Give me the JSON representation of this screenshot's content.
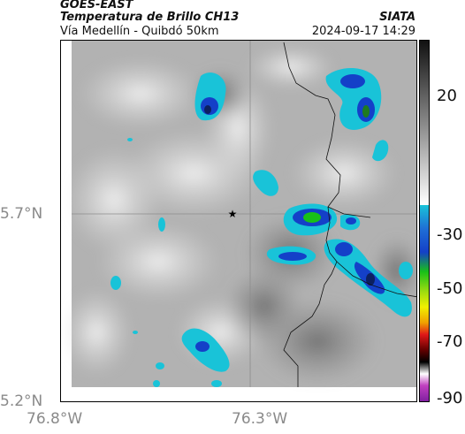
{
  "header": {
    "satellite": "GOES-EAST",
    "product": "Temperatura de Brillo CH13",
    "organization": "SIATA",
    "route": "Vía Medellín - Quibdó 50km",
    "timestamp": "2024-09-17 14:29"
  },
  "map": {
    "lat_labels": [
      "5.7°N",
      "5.2°N"
    ],
    "lon_labels": [
      "76.8°W",
      "76.3°W"
    ],
    "marker": "star-icon"
  },
  "colorbar": {
    "labels": [
      "20",
      "-30",
      "-50",
      "-70",
      "-90"
    ],
    "colors": {
      "warm_top": "#1a1a1a",
      "cyan": "#19c3d8",
      "blue": "#1440c8",
      "green": "#18c018",
      "yellow": "#f0f000",
      "red": "#e01818",
      "black": "#000000",
      "magenta": "#c040c0"
    }
  }
}
